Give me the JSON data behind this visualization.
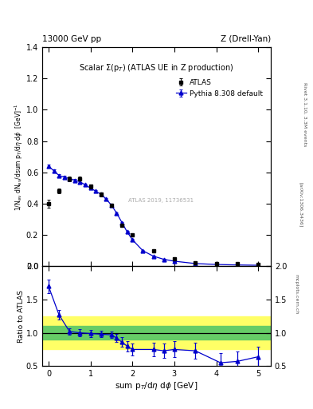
{
  "title_left": "13000 GeV pp",
  "title_right": "Z (Drell-Yan)",
  "right_label1": "Rivet 3.1.10, 3.3M events",
  "right_label2": "[arXiv:1306.3436]",
  "right_label3": "mcplots.cern.ch",
  "plot_title": "Scalar Σ(p_T) (ATLAS UE in Z production)",
  "watermark": "ATLAS 2019, 11736531",
  "ylim_main": [
    0.0,
    1.4
  ],
  "ylim_ratio": [
    0.5,
    2.0
  ],
  "xlim": [
    -0.15,
    5.3
  ],
  "atlas_x": [
    0.0,
    0.25,
    0.5,
    0.75,
    1.0,
    1.25,
    1.5,
    1.75,
    2.0,
    2.5,
    3.0,
    3.5,
    4.0,
    4.5,
    5.0
  ],
  "atlas_y": [
    0.4,
    0.48,
    0.56,
    0.56,
    0.51,
    0.46,
    0.39,
    0.26,
    0.2,
    0.1,
    0.05,
    0.025,
    0.02,
    0.015,
    0.01
  ],
  "atlas_yerr": [
    0.025,
    0.015,
    0.015,
    0.012,
    0.012,
    0.012,
    0.01,
    0.01,
    0.008,
    0.006,
    0.004,
    0.003,
    0.002,
    0.002,
    0.002
  ],
  "pythia_x": [
    0.0,
    0.125,
    0.25,
    0.375,
    0.5,
    0.625,
    0.75,
    0.875,
    1.0,
    1.125,
    1.25,
    1.375,
    1.5,
    1.625,
    1.75,
    1.875,
    2.0,
    2.25,
    2.5,
    2.75,
    3.0,
    3.5,
    4.0,
    4.5,
    5.0
  ],
  "pythia_y": [
    0.64,
    0.61,
    0.58,
    0.57,
    0.56,
    0.55,
    0.54,
    0.52,
    0.5,
    0.48,
    0.46,
    0.43,
    0.39,
    0.34,
    0.28,
    0.22,
    0.17,
    0.1,
    0.065,
    0.045,
    0.033,
    0.018,
    0.012,
    0.009,
    0.007
  ],
  "pythia_yerr": [
    0.01,
    0.01,
    0.009,
    0.009,
    0.008,
    0.008,
    0.008,
    0.008,
    0.007,
    0.007,
    0.007,
    0.006,
    0.006,
    0.005,
    0.005,
    0.005,
    0.004,
    0.003,
    0.003,
    0.002,
    0.002,
    0.002,
    0.001,
    0.001,
    0.001
  ],
  "ratio_x": [
    0.0,
    0.25,
    0.5,
    0.75,
    1.0,
    1.25,
    1.5,
    1.625,
    1.75,
    1.875,
    2.0,
    2.5,
    2.75,
    3.0,
    3.5,
    4.1,
    4.5,
    5.0
  ],
  "ratio_y": [
    1.7,
    1.27,
    1.02,
    1.0,
    0.99,
    0.98,
    0.97,
    0.92,
    0.86,
    0.8,
    0.75,
    0.75,
    0.73,
    0.75,
    0.73,
    0.55,
    0.57,
    0.64
  ],
  "ratio_yerr": [
    0.1,
    0.07,
    0.05,
    0.05,
    0.05,
    0.05,
    0.05,
    0.06,
    0.07,
    0.08,
    0.09,
    0.1,
    0.11,
    0.12,
    0.12,
    0.14,
    0.15,
    0.15
  ],
  "green_lo": 0.9,
  "green_hi": 1.1,
  "yellow_lo": 0.75,
  "yellow_hi": 1.25,
  "atlas_color": "#000000",
  "pythia_color": "#0000cc",
  "green_color": "#66cc66",
  "yellow_color": "#ffff66",
  "bg_color": "#ffffff"
}
